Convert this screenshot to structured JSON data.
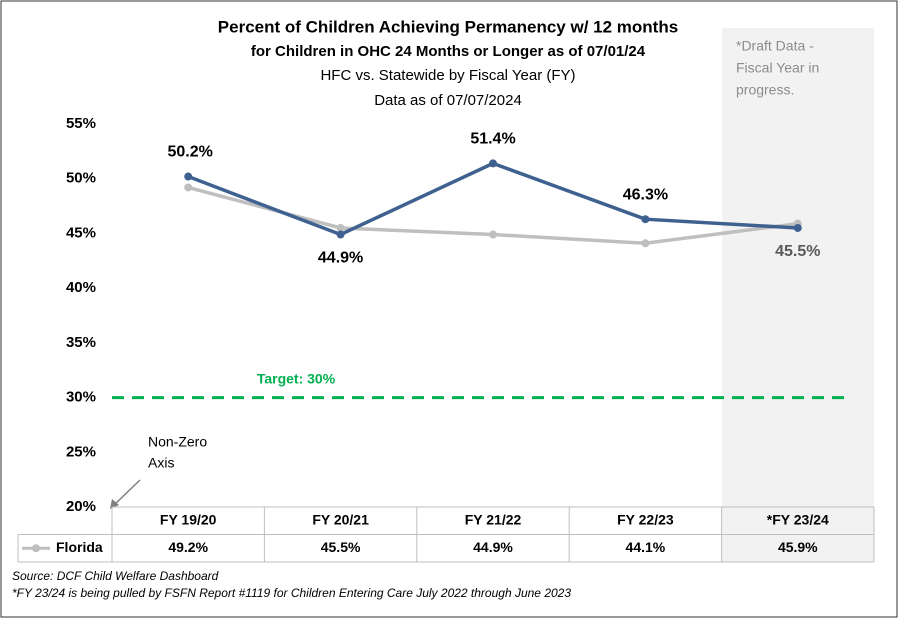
{
  "chart_data": {
    "type": "line",
    "title": "Percent of Children Achieving Permanency w/ 12 months",
    "subtitle": "for Children in OHC 24 Months or Longer as of 07/01/24",
    "subtitle2": "HFC vs. Statewide by Fiscal Year (FY)",
    "subtitle3": "Data as of 07/07/2024",
    "categories": [
      "FY 19/20",
      "FY 20/21",
      "FY 21/22",
      "FY 22/23",
      "*FY 23/24"
    ],
    "series": [
      {
        "color": "#3e6190",
        "values": [
          50.2,
          44.9,
          51.4,
          46.3,
          45.5
        ],
        "value_labels": [
          "50.2%",
          "44.9%",
          "51.4%",
          "46.3%",
          "45.5%"
        ]
      },
      {
        "name": "Florida",
        "color": "#bfbfbf",
        "values": [
          49.2,
          45.5,
          44.9,
          44.1,
          45.9
        ],
        "value_labels": [
          "49.2%",
          "45.5%",
          "44.9%",
          "44.1%",
          "45.9%"
        ]
      }
    ],
    "ylim": [
      20,
      55
    ],
    "yticks": [
      {
        "value": 20,
        "label": "20%"
      },
      {
        "value": 25,
        "label": "25%"
      },
      {
        "value": 30,
        "label": "30%"
      },
      {
        "value": 35,
        "label": "35%"
      },
      {
        "value": 40,
        "label": "40%"
      },
      {
        "value": 45,
        "label": "45%"
      },
      {
        "value": 50,
        "label": "50%"
      },
      {
        "value": 55,
        "label": "55%"
      }
    ],
    "target": {
      "value": 30,
      "label": "Target: 30%",
      "color": "#00b050"
    },
    "draft_note": [
      "*Draft Data -",
      "Fiscal Year in",
      "progress."
    ],
    "axis_note": [
      "Non-Zero",
      "Axis"
    ],
    "sources": [
      "Source: DCF Child Welfare Dashboard",
      "*FY 23/24 is being pulled by FSFN Report #1119 for Children Entering Care July 2022 through June 2023"
    ]
  }
}
